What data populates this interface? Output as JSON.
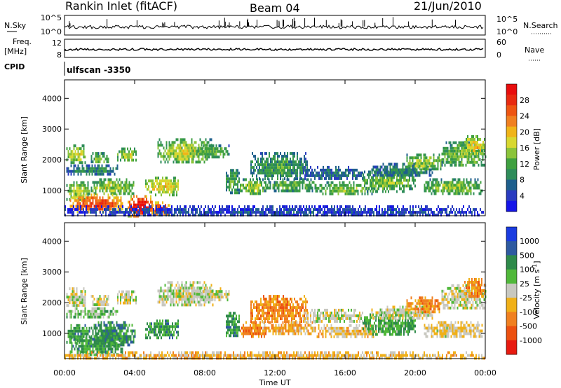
{
  "header": {
    "station": "Rankin Inlet (fitACF)",
    "beam": "Beam 04",
    "date": "21/Jun/2010"
  },
  "nsky_panel": {
    "left_label": "N.Sky",
    "right_label": "N.Search",
    "tick_top": "10^5",
    "tick_bottom": "10^0"
  },
  "freq_panel": {
    "left_label_line1": "Freq.",
    "left_label_line2": "[MHz]",
    "left_tick_top": "12",
    "left_tick_bottom": "8",
    "right_label": "Nave",
    "right_tick_top": "60",
    "right_tick_bottom": "0"
  },
  "cpid": {
    "label": "CPID",
    "value": "ulfscan -3350"
  },
  "chart_data": [
    {
      "type": "heatmap",
      "title": "Power",
      "ylabel": "Slant Range [km]",
      "ylim": [
        180,
        4600
      ],
      "yticks": [
        1000,
        2000,
        3000,
        4000
      ],
      "x_range_hours": [
        0,
        24
      ],
      "colorbar": {
        "label": "Power [dB]",
        "ticks": [
          "4",
          "8",
          "12",
          "16",
          "20",
          "24",
          "28"
        ],
        "colors": [
          "#1515e8",
          "#2a3cc0",
          "#1e5f8c",
          "#2e8c5a",
          "#3fa040",
          "#8bc43a",
          "#d8d830",
          "#f0b418",
          "#f08020",
          "#ee5512",
          "#e82a10",
          "#e80d0d"
        ]
      },
      "regions": [
        {
          "start": 0.1,
          "end": 1.2,
          "range_min": 1950,
          "range_max": 2500,
          "level": 0.55
        },
        {
          "start": 1.5,
          "end": 2.5,
          "range_min": 1900,
          "range_max": 2250,
          "level": 0.45
        },
        {
          "start": 3.0,
          "end": 4.1,
          "range_min": 1950,
          "range_max": 2400,
          "level": 0.5
        },
        {
          "start": 0.1,
          "end": 3.0,
          "range_min": 1550,
          "range_max": 1850,
          "level": 0.3
        },
        {
          "start": 0.1,
          "end": 1.4,
          "range_min": 700,
          "range_max": 1300,
          "level": 0.5
        },
        {
          "start": 1.5,
          "end": 4.0,
          "range_min": 900,
          "range_max": 1400,
          "level": 0.5
        },
        {
          "start": 0.3,
          "end": 3.3,
          "range_min": 300,
          "range_max": 900,
          "level": 0.85
        },
        {
          "start": 3.6,
          "end": 5.0,
          "range_min": 200,
          "range_max": 850,
          "level": 1.0
        },
        {
          "start": 4.6,
          "end": 6.5,
          "range_min": 900,
          "range_max": 1450,
          "level": 0.6
        },
        {
          "start": 5.0,
          "end": 6.0,
          "range_min": 200,
          "range_max": 650,
          "level": 0.9
        },
        {
          "start": 5.3,
          "end": 8.5,
          "range_min": 1900,
          "range_max": 2700,
          "level": 0.5
        },
        {
          "start": 7.5,
          "end": 9.4,
          "range_min": 2100,
          "range_max": 2500,
          "level": 0.4
        },
        {
          "start": 9.2,
          "end": 10.0,
          "range_min": 900,
          "range_max": 1700,
          "level": 0.4
        },
        {
          "start": 10.0,
          "end": 11.5,
          "range_min": 900,
          "range_max": 1400,
          "level": 0.5
        },
        {
          "start": 10.6,
          "end": 13.8,
          "range_min": 1350,
          "range_max": 2250,
          "level": 0.35
        },
        {
          "start": 11.3,
          "end": 14.3,
          "range_min": 1000,
          "range_max": 1400,
          "level": 0.4
        },
        {
          "start": 13.6,
          "end": 17.0,
          "range_min": 1400,
          "range_max": 1800,
          "level": 0.25
        },
        {
          "start": 14.3,
          "end": 17.8,
          "range_min": 900,
          "range_max": 1300,
          "level": 0.45
        },
        {
          "start": 17.0,
          "end": 20.0,
          "range_min": 1000,
          "range_max": 1650,
          "level": 0.45
        },
        {
          "start": 17.5,
          "end": 21.0,
          "range_min": 1500,
          "range_max": 1900,
          "level": 0.3
        },
        {
          "start": 19.5,
          "end": 21.5,
          "range_min": 1700,
          "range_max": 2200,
          "level": 0.5
        },
        {
          "start": 20.5,
          "end": 23.8,
          "range_min": 900,
          "range_max": 1400,
          "level": 0.45
        },
        {
          "start": 21.5,
          "end": 24.0,
          "range_min": 1800,
          "range_max": 2600,
          "level": 0.45
        },
        {
          "start": 22.8,
          "end": 24.0,
          "range_min": 2200,
          "range_max": 2800,
          "level": 0.6
        },
        {
          "start": 0.0,
          "end": 24.0,
          "range_min": 180,
          "range_max": 520,
          "level": 0.15
        }
      ]
    },
    {
      "type": "heatmap",
      "title": "Velocity",
      "ylabel": "Slant Range [km]",
      "xlabel": "Time UT",
      "ylim": [
        180,
        4600
      ],
      "yticks": [
        1000,
        2000,
        3000,
        4000
      ],
      "x_range_hours": [
        0,
        24
      ],
      "xticks": [
        "00:00",
        "04:00",
        "08:00",
        "12:00",
        "16:00",
        "20:00",
        "00:00"
      ],
      "colorbar": {
        "label": "Velocity [m s^-1]",
        "ticks": [
          "1000",
          "500",
          "100",
          "25",
          "-25",
          "-100",
          "-500",
          "-1000"
        ],
        "colors": [
          "#1a3ce0",
          "#2e5aa0",
          "#2e8a4a",
          "#50b83a",
          "#c8c8c0",
          "#f0b018",
          "#f08020",
          "#ec5010",
          "#e81a10"
        ]
      },
      "regions": [
        {
          "start": 0.1,
          "end": 1.2,
          "range_min": 1950,
          "range_max": 2500,
          "level": 0.5
        },
        {
          "start": 1.5,
          "end": 2.5,
          "range_min": 1900,
          "range_max": 2250,
          "level": 0.5
        },
        {
          "start": 3.0,
          "end": 4.1,
          "range_min": 1950,
          "range_max": 2400,
          "level": 0.5
        },
        {
          "start": 0.1,
          "end": 3.0,
          "range_min": 1550,
          "range_max": 1850,
          "level": 0.42
        },
        {
          "start": 0.1,
          "end": 1.4,
          "range_min": 700,
          "range_max": 1300,
          "level": 0.3
        },
        {
          "start": 1.5,
          "end": 4.0,
          "range_min": 600,
          "range_max": 1400,
          "level": 0.28
        },
        {
          "start": 0.3,
          "end": 3.3,
          "range_min": 300,
          "range_max": 900,
          "level": 0.32
        },
        {
          "start": 4.6,
          "end": 6.5,
          "range_min": 900,
          "range_max": 1450,
          "level": 0.3
        },
        {
          "start": 5.3,
          "end": 8.5,
          "range_min": 1900,
          "range_max": 2700,
          "level": 0.5
        },
        {
          "start": 7.5,
          "end": 9.4,
          "range_min": 2100,
          "range_max": 2500,
          "level": 0.5
        },
        {
          "start": 9.2,
          "end": 10.0,
          "range_min": 900,
          "range_max": 1700,
          "level": 0.3
        },
        {
          "start": 10.0,
          "end": 11.5,
          "range_min": 900,
          "range_max": 1400,
          "level": 0.7
        },
        {
          "start": 10.6,
          "end": 13.8,
          "range_min": 1350,
          "range_max": 2250,
          "level": 0.7
        },
        {
          "start": 11.3,
          "end": 14.3,
          "range_min": 1000,
          "range_max": 1400,
          "level": 0.62
        },
        {
          "start": 13.6,
          "end": 17.0,
          "range_min": 1400,
          "range_max": 1800,
          "level": 0.5
        },
        {
          "start": 14.3,
          "end": 17.8,
          "range_min": 900,
          "range_max": 1300,
          "level": 0.6
        },
        {
          "start": 17.0,
          "end": 20.0,
          "range_min": 1000,
          "range_max": 1650,
          "level": 0.35
        },
        {
          "start": 17.5,
          "end": 21.0,
          "range_min": 1500,
          "range_max": 1900,
          "level": 0.5
        },
        {
          "start": 19.5,
          "end": 21.5,
          "range_min": 1700,
          "range_max": 2200,
          "level": 0.7
        },
        {
          "start": 20.5,
          "end": 23.8,
          "range_min": 900,
          "range_max": 1400,
          "level": 0.55
        },
        {
          "start": 21.5,
          "end": 24.0,
          "range_min": 1800,
          "range_max": 2600,
          "level": 0.5
        },
        {
          "start": 22.8,
          "end": 24.0,
          "range_min": 2200,
          "range_max": 2800,
          "level": 0.68
        },
        {
          "start": 0.0,
          "end": 24.0,
          "range_min": 180,
          "range_max": 420,
          "level": 0.6
        }
      ]
    }
  ]
}
